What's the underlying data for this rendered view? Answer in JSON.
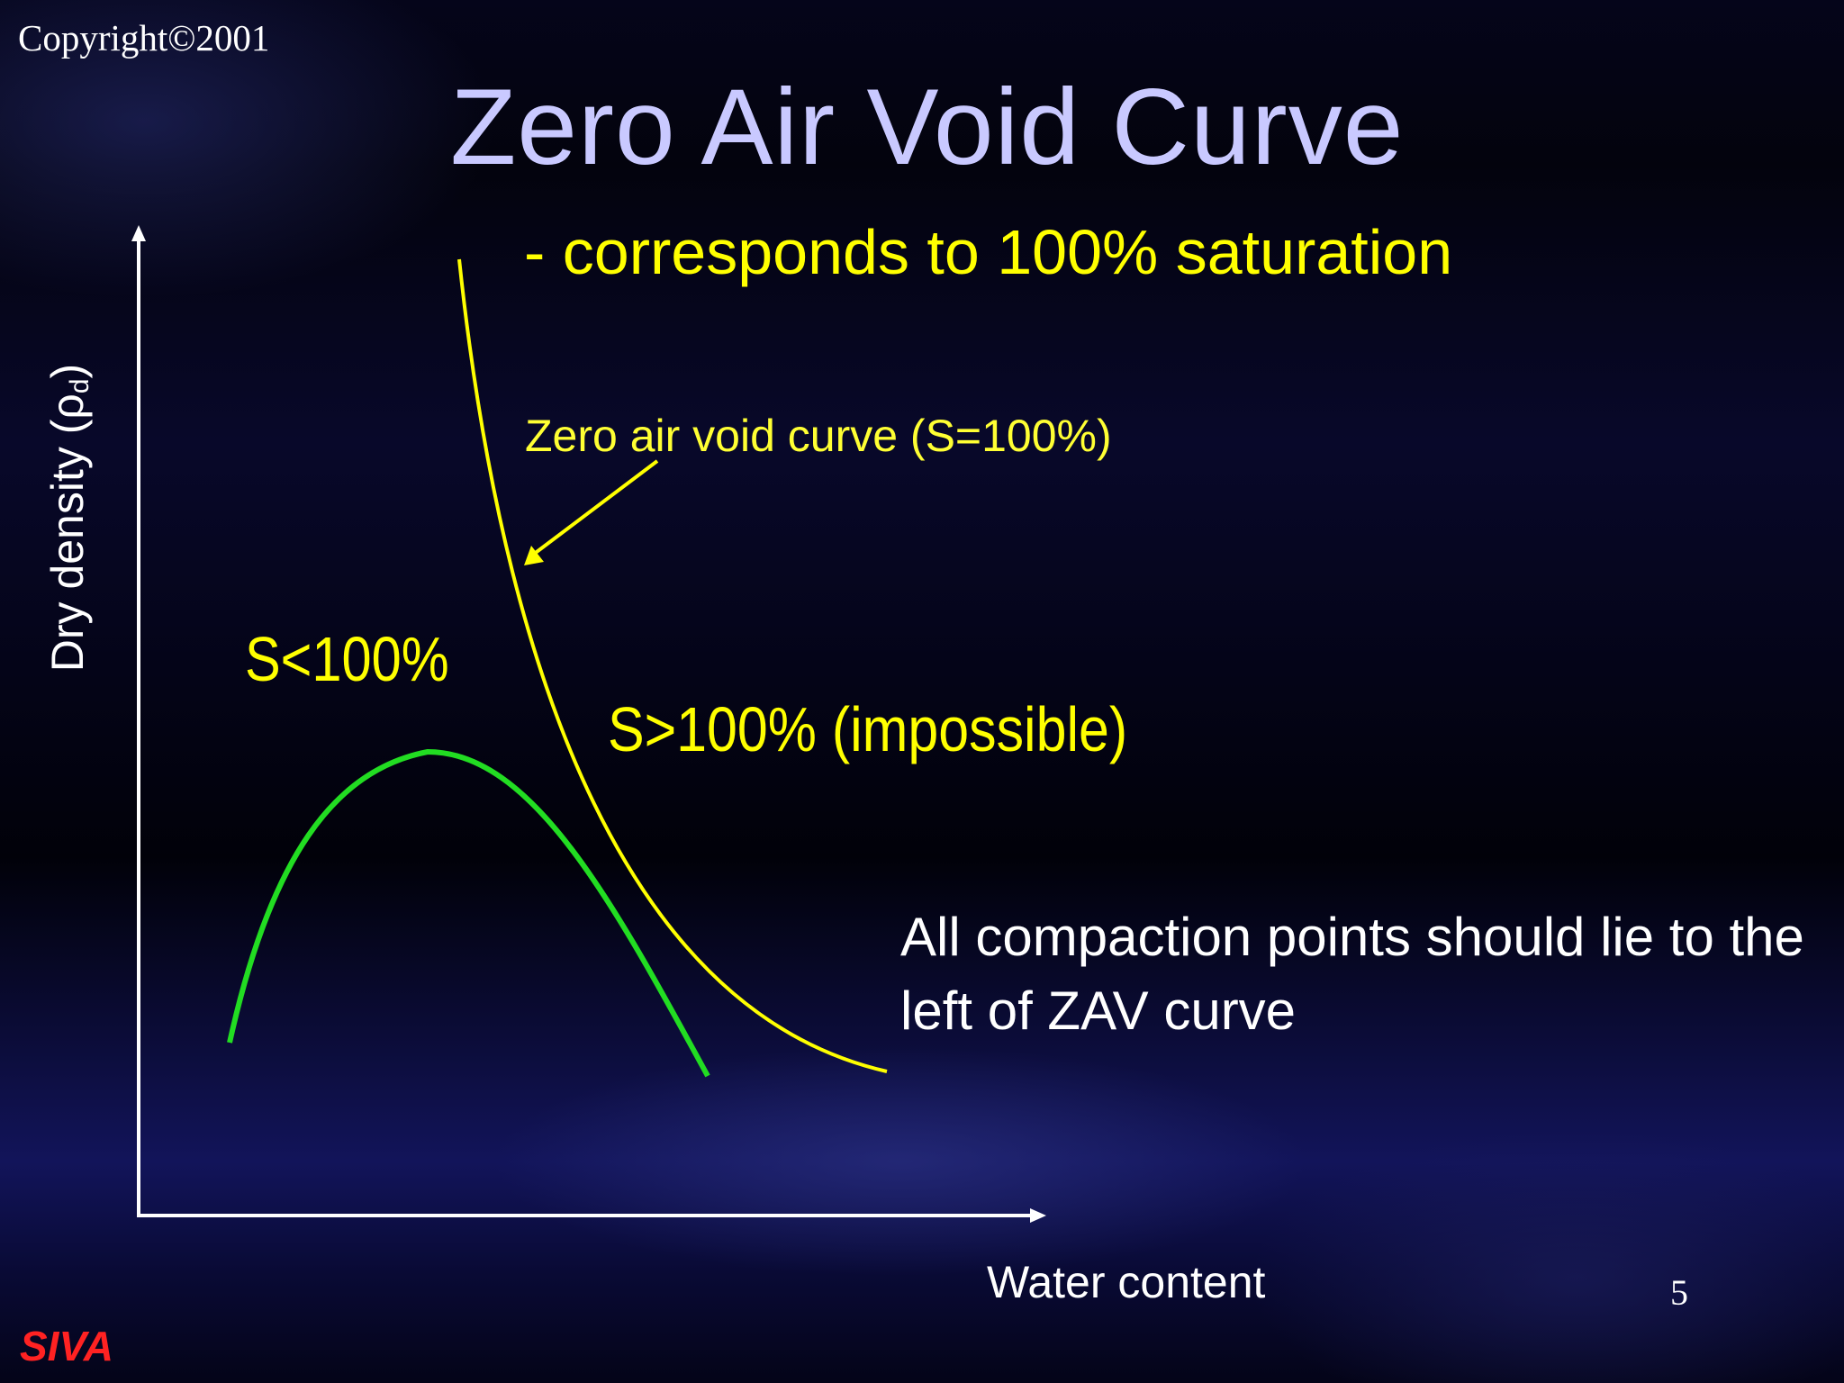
{
  "copyright": "Copyright©2001",
  "title": "Zero Air Void Curve",
  "subtitle": "- corresponds to 100% saturation",
  "diagram": {
    "zav_curve_label": "Zero air void curve (S=100%)",
    "region_below_label": "S<100%",
    "region_above_label": "S>100% (impossible)",
    "x_axis_label": "Water content",
    "y_axis_label_main": "Dry density (ρ",
    "y_axis_label_sub": "d",
    "y_axis_label_close": ")",
    "colors": {
      "zav_curve": "#ffff00",
      "compaction_curve": "#22dd22",
      "axes": "#ffffff"
    }
  },
  "note": "All compaction points should lie to the left of ZAV curve",
  "page_number": "5",
  "author": "SIVA"
}
